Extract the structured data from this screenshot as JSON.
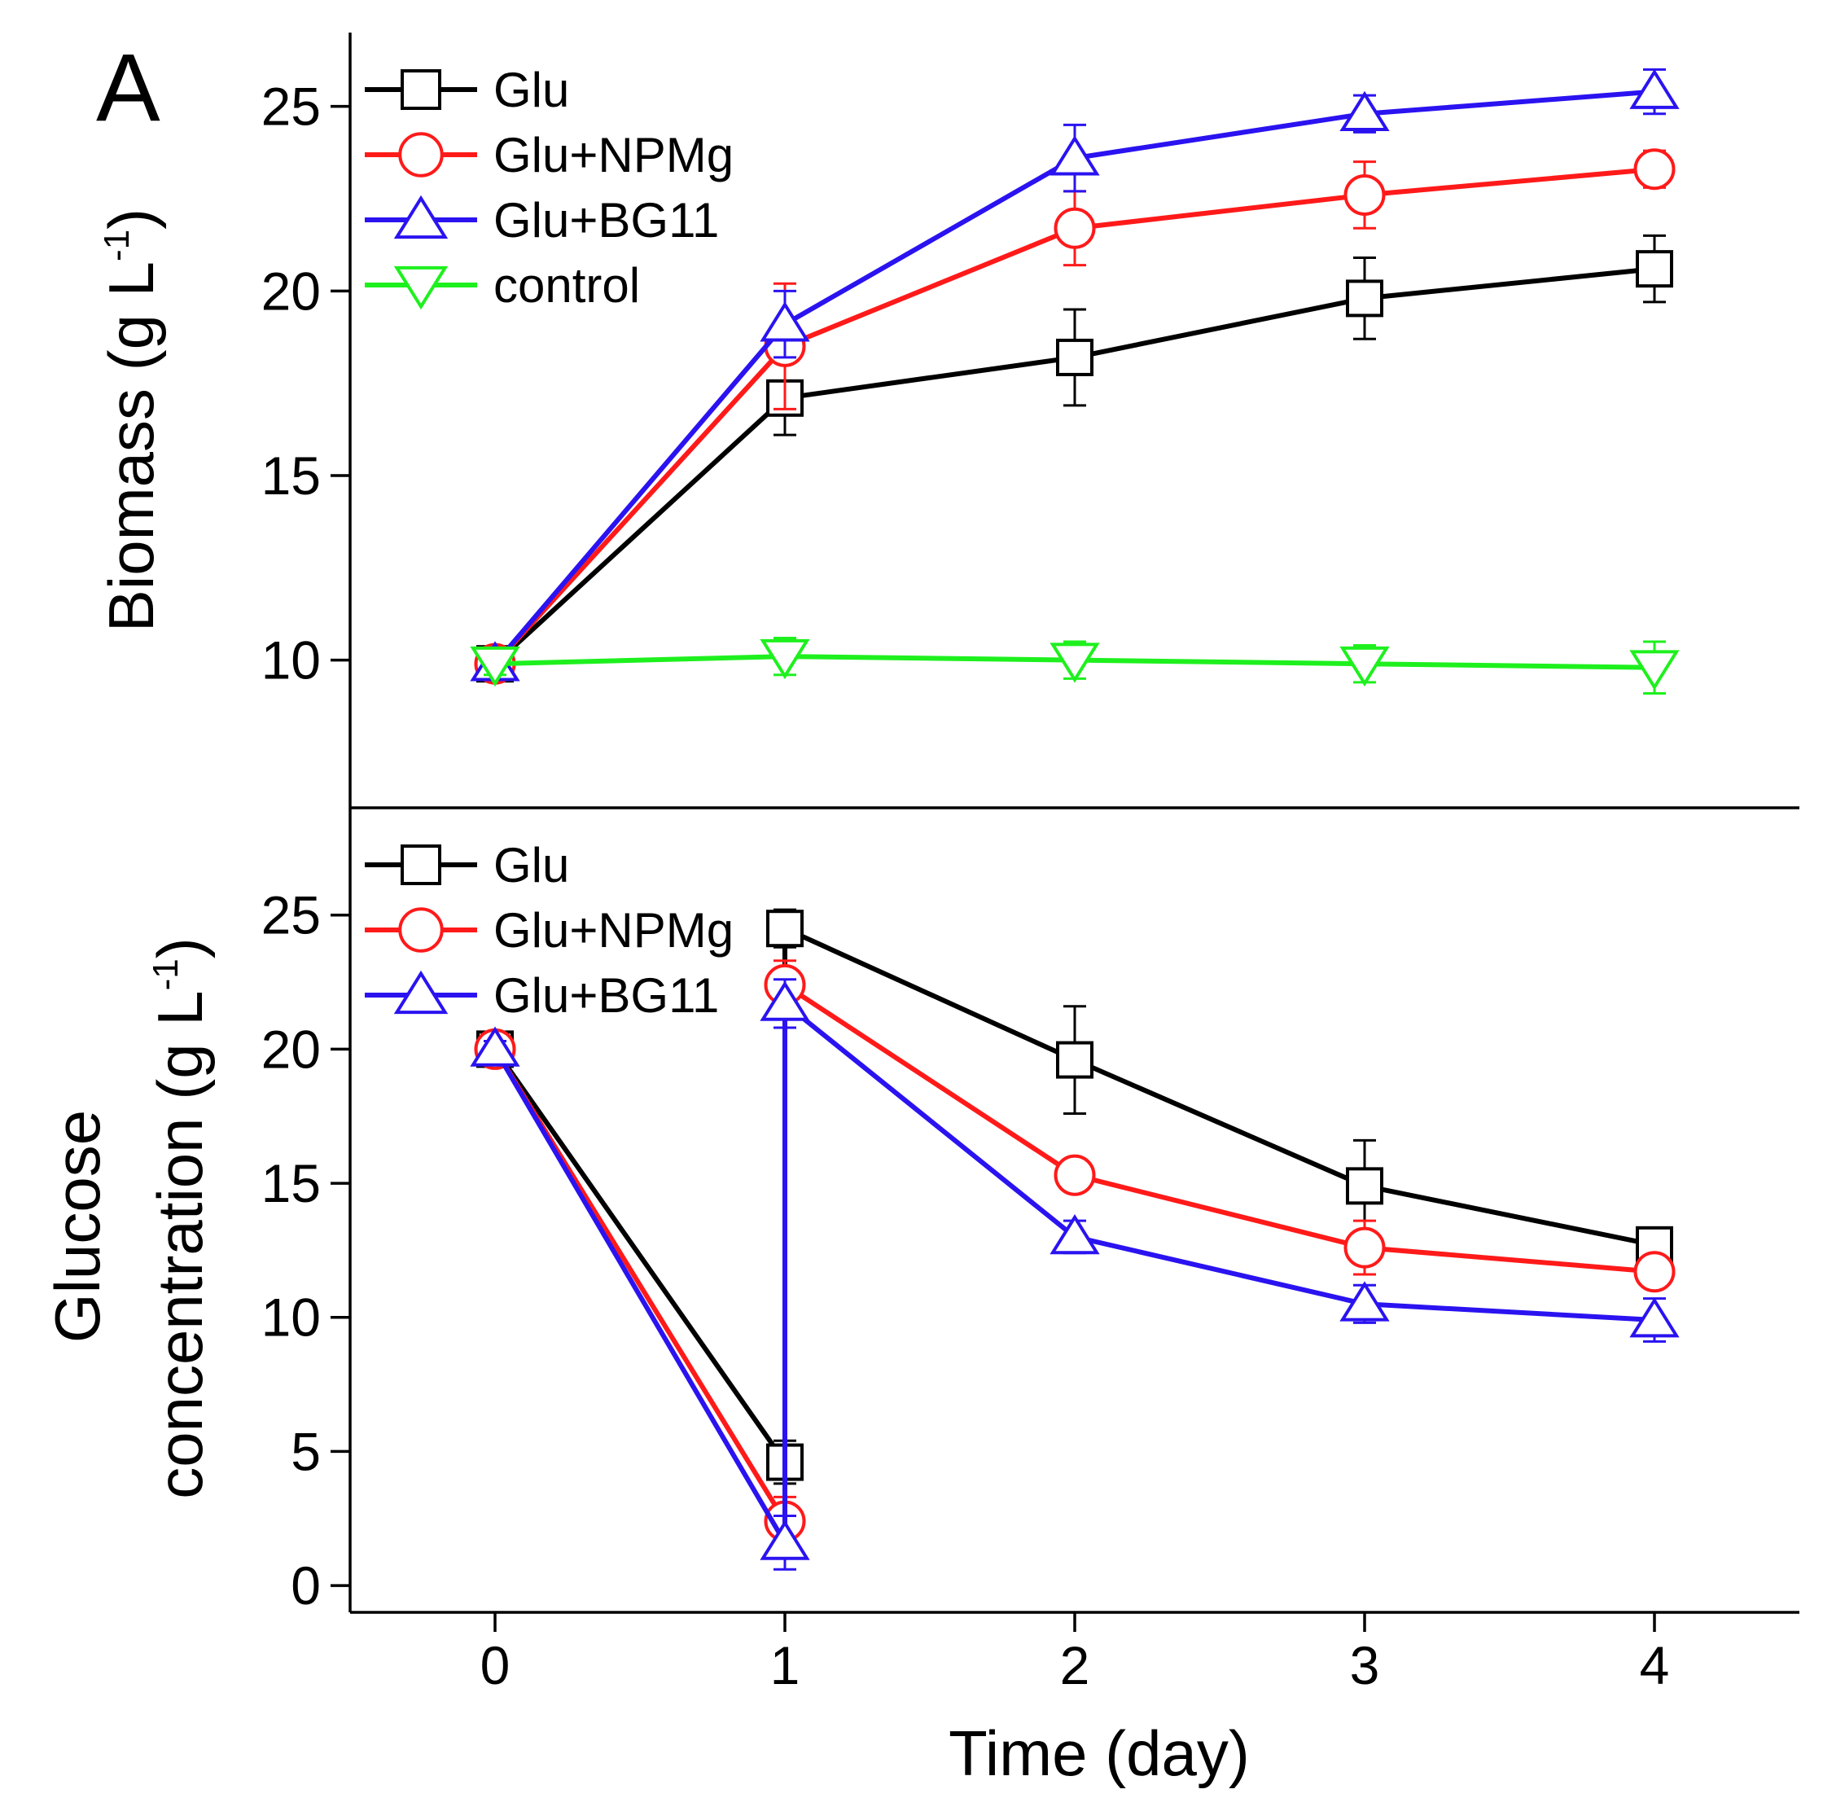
{
  "panel_label": "A",
  "colors": {
    "glu": "#000000",
    "glu_npmg": "#ff1a1a",
    "glu_bg11": "#2a13f0",
    "control": "#1ef01e"
  },
  "chart_data": [
    {
      "type": "line",
      "name": "biomass-panel",
      "ylabel_main": "Biomass (g L",
      "ylabel_sup": "-1",
      "ylabel_end": ")",
      "xlabel": "Time (day)",
      "x": [
        0,
        1,
        2,
        3,
        4
      ],
      "xlim": [
        -0.5,
        4.5
      ],
      "ylim": [
        6.0,
        27.0
      ],
      "yticks": [
        10,
        15,
        20,
        25
      ],
      "legend": "top-left",
      "series": [
        {
          "key": "glu",
          "name": "Glu",
          "marker": "square",
          "color": "#000000",
          "values": [
            9.9,
            17.1,
            18.2,
            19.8,
            20.6
          ],
          "errors": [
            0.2,
            1.0,
            1.3,
            1.1,
            0.9
          ]
        },
        {
          "key": "glu_npmg",
          "name": "Glu+NPMg",
          "marker": "circle",
          "color": "#ff1a1a",
          "values": [
            9.9,
            18.5,
            21.7,
            22.6,
            23.3
          ],
          "errors": [
            0.2,
            1.7,
            1.0,
            0.9,
            0.5
          ]
        },
        {
          "key": "glu_bg11",
          "name": "Glu+BG11",
          "marker": "triangle-up",
          "color": "#2a13f0",
          "values": [
            9.9,
            19.1,
            23.6,
            24.8,
            25.4
          ],
          "errors": [
            0.2,
            0.9,
            0.9,
            0.5,
            0.6
          ]
        },
        {
          "key": "control",
          "name": "control",
          "marker": "triangle-down",
          "color": "#1ef01e",
          "values": [
            9.9,
            10.1,
            10.0,
            9.9,
            9.8
          ],
          "errors": [
            0.3,
            0.5,
            0.5,
            0.5,
            0.7
          ]
        }
      ]
    },
    {
      "type": "line",
      "name": "glucose-panel",
      "ylabel_line1": "Glucose",
      "ylabel_main": "concentration (g L",
      "ylabel_sup": "-1",
      "ylabel_end": ")",
      "xlabel": "Time (day)",
      "xticks": [
        0,
        1,
        2,
        3,
        4
      ],
      "xlim": [
        -0.5,
        4.5
      ],
      "ylim": [
        -1.0,
        29.0
      ],
      "yticks": [
        0,
        5,
        10,
        15,
        20,
        25
      ],
      "legend": "top-left",
      "series": [
        {
          "key": "glu",
          "name": "Glu",
          "marker": "square",
          "color": "#000000",
          "x": [
            0,
            1,
            1,
            2,
            3,
            4
          ],
          "values": [
            20.0,
            4.6,
            24.5,
            19.6,
            14.9,
            12.7
          ],
          "errors": [
            0.3,
            0.8,
            0.7,
            2.0,
            1.7,
            0.6
          ]
        },
        {
          "key": "glu_npmg",
          "name": "Glu+NPMg",
          "marker": "circle",
          "color": "#ff1a1a",
          "x": [
            0,
            1,
            1,
            2,
            3,
            4
          ],
          "values": [
            20.0,
            2.4,
            22.4,
            15.3,
            12.6,
            11.7
          ],
          "errors": [
            0.3,
            0.9,
            0.9,
            0.4,
            1.0,
            0.6
          ]
        },
        {
          "key": "glu_bg11",
          "name": "Glu+BG11",
          "marker": "triangle-up",
          "color": "#2a13f0",
          "x": [
            0,
            1,
            1,
            2,
            3,
            4
          ],
          "values": [
            20.0,
            1.6,
            21.7,
            13.0,
            10.5,
            9.9
          ],
          "errors": [
            0.3,
            1.0,
            0.9,
            0.6,
            0.7,
            0.8
          ]
        }
      ]
    }
  ]
}
